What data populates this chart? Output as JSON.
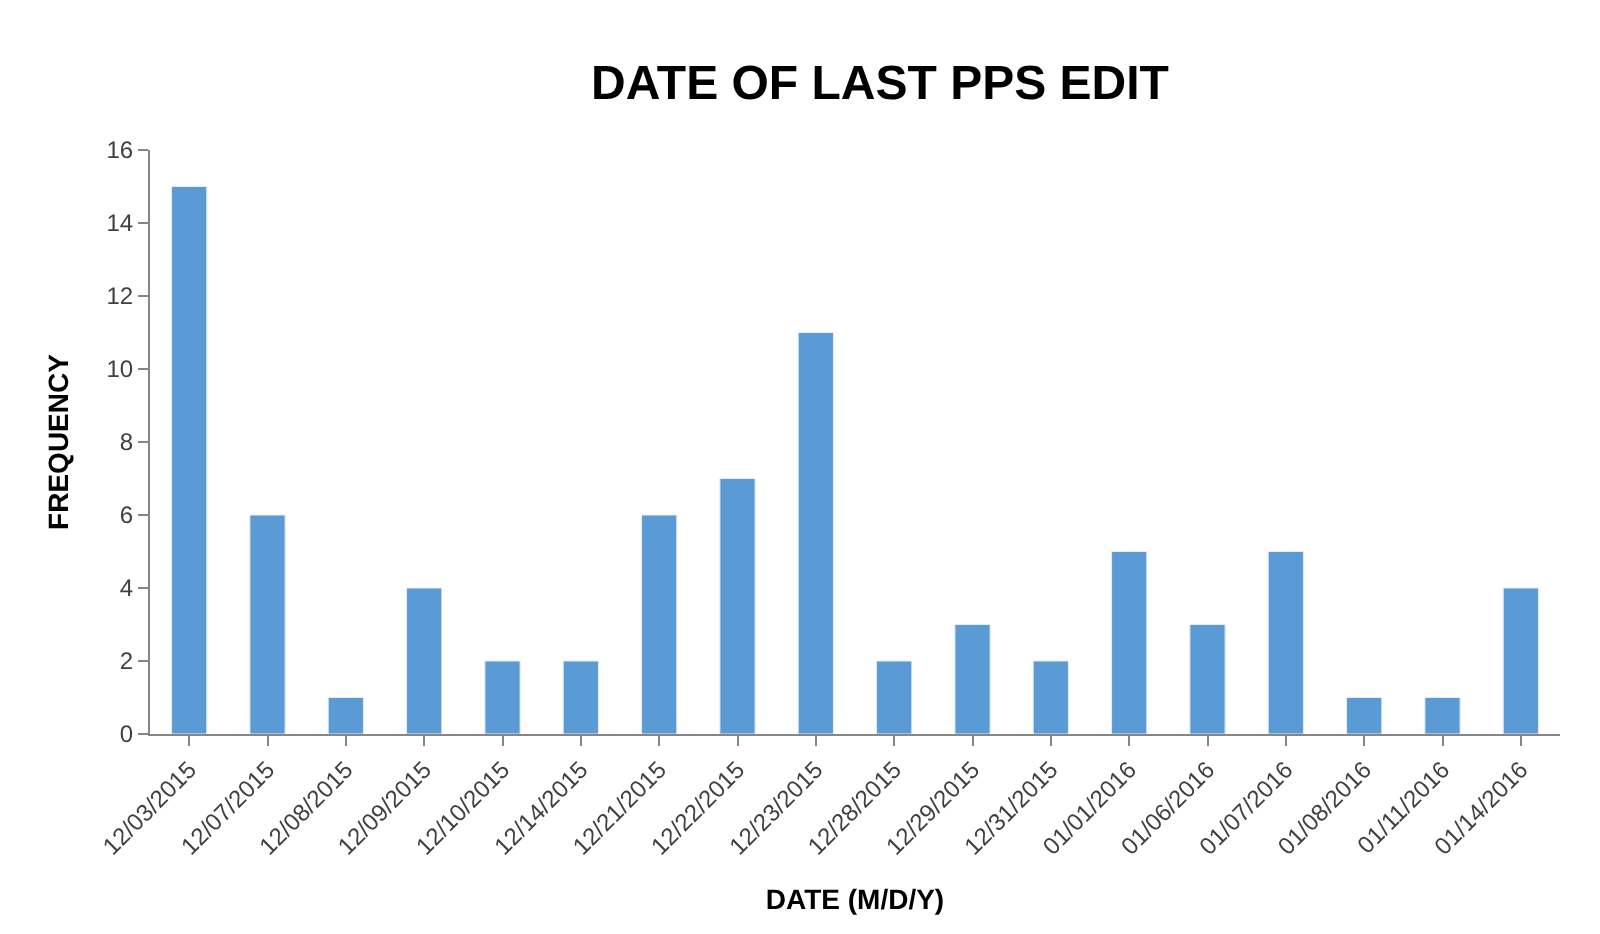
{
  "chart_data": {
    "type": "bar",
    "title": "DATE OF LAST PPS EDIT",
    "xlabel": "DATE (M/D/Y)",
    "ylabel": "FREQUENCY",
    "categories": [
      "12/03/2015",
      "12/07/2015",
      "12/08/2015",
      "12/09/2015",
      "12/10/2015",
      "12/14/2015",
      "12/21/2015",
      "12/22/2015",
      "12/23/2015",
      "12/28/2015",
      "12/29/2015",
      "12/31/2015",
      "01/01/2016",
      "01/06/2016",
      "01/07/2016",
      "01/08/2016",
      "01/11/2016",
      "01/14/2016"
    ],
    "values": [
      15,
      6,
      1,
      4,
      2,
      2,
      6,
      7,
      11,
      2,
      3,
      2,
      5,
      3,
      5,
      1,
      1,
      4
    ],
    "color": "#5b9bd5",
    "ylim": [
      0,
      16
    ],
    "yticks": [
      0,
      2,
      4,
      6,
      8,
      10,
      12,
      14,
      16
    ],
    "legend": false
  }
}
